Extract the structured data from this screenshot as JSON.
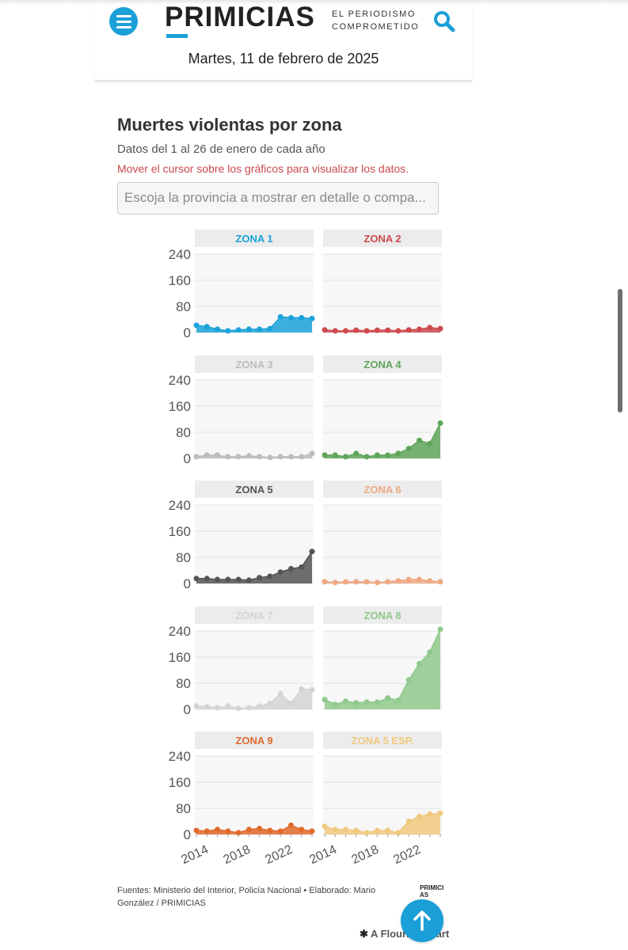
{
  "header": {
    "logo": "PRIMICIAS",
    "tagline_line1": "EL PERIODISMO",
    "tagline_line2": "COMPROMETIDO",
    "date": "Martes, 11 de febrero de 2025"
  },
  "chart_data": {
    "type": "area",
    "title": "Muertes violentas por zona",
    "subtitle": "Datos del 1 al 26 de enero de cada año",
    "note": "Mover el cursor sobre los gráficos para visualizar los datos.",
    "dropdown_placeholder": "Escoja la provincia a mostrar en detalle o compa...",
    "x": [
      2014,
      2015,
      2016,
      2017,
      2018,
      2019,
      2020,
      2021,
      2022,
      2023,
      2024,
      2025
    ],
    "x_ticks": [
      "2014",
      "2018",
      "2022"
    ],
    "y_ticks": [
      "240",
      "160",
      "80",
      "0"
    ],
    "ylim": [
      0,
      240
    ],
    "series": [
      {
        "name": "ZONA 1",
        "color": "#1aa3d9",
        "values": [
          22,
          18,
          10,
          5,
          8,
          10,
          10,
          12,
          48,
          45,
          45,
          43
        ]
      },
      {
        "name": "ZONA 2",
        "color": "#cf4a4f",
        "values": [
          8,
          5,
          5,
          7,
          5,
          7,
          7,
          5,
          8,
          10,
          15,
          12
        ]
      },
      {
        "name": "ZONA 3",
        "color": "#bdbdbd",
        "values": [
          5,
          10,
          10,
          5,
          5,
          8,
          5,
          3,
          5,
          5,
          5,
          15
        ]
      },
      {
        "name": "ZONA 4",
        "color": "#5fa55a",
        "values": [
          10,
          10,
          5,
          15,
          5,
          10,
          10,
          15,
          30,
          55,
          45,
          108
        ]
      },
      {
        "name": "ZONA 5",
        "color": "#555555",
        "values": [
          15,
          15,
          12,
          12,
          12,
          10,
          18,
          22,
          35,
          45,
          50,
          98
        ]
      },
      {
        "name": "ZONA 6",
        "color": "#efa883",
        "values": [
          5,
          3,
          5,
          5,
          5,
          3,
          5,
          8,
          12,
          12,
          8,
          5
        ]
      },
      {
        "name": "ZONA 7",
        "color": "#d4d4d4",
        "values": [
          10,
          8,
          5,
          10,
          3,
          5,
          10,
          18,
          48,
          18,
          62,
          60
        ]
      },
      {
        "name": "ZONA 8",
        "color": "#8fc98c",
        "values": [
          30,
          15,
          25,
          20,
          22,
          22,
          35,
          28,
          90,
          140,
          175,
          245
        ]
      },
      {
        "name": "ZONA 9",
        "color": "#e06a2b",
        "values": [
          12,
          10,
          15,
          10,
          5,
          15,
          18,
          12,
          10,
          28,
          15,
          10
        ]
      },
      {
        "name": "ZONA 5 ESP.",
        "color": "#f0c97e",
        "values": [
          25,
          15,
          15,
          12,
          5,
          12,
          12,
          5,
          40,
          55,
          62,
          65
        ]
      }
    ]
  },
  "footer": {
    "sources": "Fuentes: Ministerio del Interior, Policía Nacional • Elaborado: Mario González / PRIMICIAS",
    "mini_logo": "PRIMICIAS",
    "flourish": "A Flourish chart"
  },
  "icons": {
    "menu": "hamburger-menu-icon",
    "search": "search-icon",
    "scroll_top": "arrow-up-icon",
    "flourish": "asterisk-icon"
  }
}
